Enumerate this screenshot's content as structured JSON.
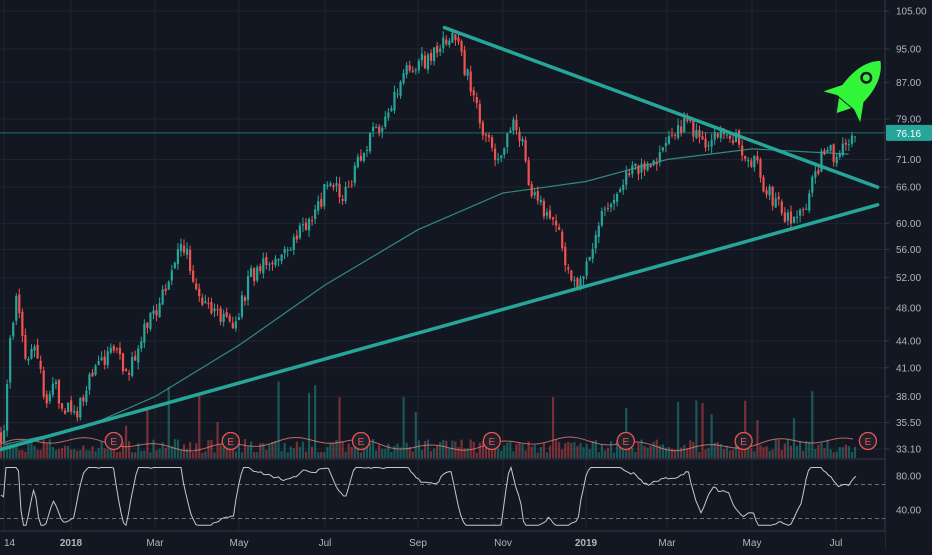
{
  "chart_data": {
    "type": "candlestick",
    "price_axis": {
      "scale": "log",
      "ticks": [
        "105.00",
        "95.00",
        "87.00",
        "79.00",
        "71.00",
        "66.00",
        "60.00",
        "56.00",
        "52.00",
        "48.00",
        "44.00",
        "41.00",
        "38.00",
        "35.50",
        "33.10"
      ]
    },
    "rsi_axis": {
      "ticks": [
        "80.00",
        "40.00"
      ]
    },
    "time_axis": {
      "ticks": [
        "14",
        "2018",
        "Mar",
        "May",
        "Jul",
        "Sep",
        "Nov",
        "2019",
        "Mar",
        "May",
        "Jul"
      ],
      "bold_ticks": [
        "2018",
        "2019"
      ]
    },
    "last_price": "76.16",
    "price_points": [
      [
        "2017-11-14",
        34.5
      ],
      [
        "2017-11-20",
        47
      ],
      [
        "2017-11-24",
        49.5
      ],
      [
        "2017-11-30",
        41
      ],
      [
        "2017-12-06",
        43.5
      ],
      [
        "2017-12-13",
        38
      ],
      [
        "2017-12-20",
        39
      ],
      [
        "2017-12-27",
        37
      ],
      [
        "2018-01-03",
        36
      ],
      [
        "2018-01-10",
        38.5
      ],
      [
        "2018-01-20",
        41
      ],
      [
        "2018-01-31",
        44
      ],
      [
        "2018-02-09",
        39.5
      ],
      [
        "2018-02-20",
        45
      ],
      [
        "2018-03-01",
        47.5
      ],
      [
        "2018-03-10",
        52
      ],
      [
        "2018-03-20",
        57
      ],
      [
        "2018-03-28",
        53
      ],
      [
        "2018-04-08",
        48
      ],
      [
        "2018-04-18",
        46.5
      ],
      [
        "2018-04-27",
        45
      ],
      [
        "2018-05-08",
        52
      ],
      [
        "2018-05-18",
        54
      ],
      [
        "2018-05-31",
        56
      ],
      [
        "2018-06-10",
        58
      ],
      [
        "2018-06-20",
        61
      ],
      [
        "2018-07-03",
        66
      ],
      [
        "2018-07-15",
        65
      ],
      [
        "2018-07-25",
        72
      ],
      [
        "2018-08-05",
        77
      ],
      [
        "2018-08-15",
        82
      ],
      [
        "2018-08-25",
        90
      ],
      [
        "2018-09-05",
        92
      ],
      [
        "2018-09-15",
        94
      ],
      [
        "2018-09-20",
        97
      ],
      [
        "2018-09-25",
        99
      ],
      [
        "2018-10-02",
        93
      ],
      [
        "2018-10-10",
        86
      ],
      [
        "2018-10-17",
        77
      ],
      [
        "2018-10-24",
        73
      ],
      [
        "2018-10-31",
        70
      ],
      [
        "2018-11-07",
        78
      ],
      [
        "2018-11-14",
        75
      ],
      [
        "2018-11-21",
        66
      ],
      [
        "2018-11-28",
        63
      ],
      [
        "2018-12-05",
        62
      ],
      [
        "2018-12-12",
        59
      ],
      [
        "2018-12-19",
        52
      ],
      [
        "2018-12-26",
        51
      ],
      [
        "2019-01-02",
        55
      ],
      [
        "2019-01-09",
        59
      ],
      [
        "2019-01-16",
        62
      ],
      [
        "2019-01-25",
        66
      ],
      [
        "2019-02-05",
        69
      ],
      [
        "2019-02-15",
        70
      ],
      [
        "2019-02-26",
        73
      ],
      [
        "2019-03-07",
        75
      ],
      [
        "2019-03-16",
        79
      ],
      [
        "2019-03-26",
        74
      ],
      [
        "2019-04-04",
        77
      ],
      [
        "2019-04-14",
        77
      ],
      [
        "2019-04-23",
        73
      ],
      [
        "2019-05-02",
        71
      ],
      [
        "2019-05-09",
        67
      ],
      [
        "2019-05-16",
        64
      ],
      [
        "2019-05-23",
        62
      ],
      [
        "2019-05-30",
        60
      ],
      [
        "2019-06-06",
        61
      ],
      [
        "2019-06-13",
        66
      ],
      [
        "2019-06-20",
        71
      ],
      [
        "2019-06-27",
        72
      ],
      [
        "2019-07-03",
        72
      ],
      [
        "2019-07-10",
        73
      ],
      [
        "2019-07-16",
        76.16
      ]
    ],
    "moving_average": [
      [
        "2017-11-14",
        33.5
      ],
      [
        "2018-01-10",
        35
      ],
      [
        "2018-03-01",
        38
      ],
      [
        "2018-05-01",
        43.5
      ],
      [
        "2018-07-01",
        51
      ],
      [
        "2018-09-01",
        59
      ],
      [
        "2018-11-01",
        65
      ],
      [
        "2019-01-01",
        67
      ],
      [
        "2019-03-01",
        71
      ],
      [
        "2019-05-01",
        73
      ],
      [
        "2019-07-10",
        72
      ]
    ],
    "trendlines": [
      {
        "from": [
          "2017-11-10",
          33.0
        ],
        "to": [
          "2019-07-31",
          63.0
        ],
        "color": "#26a69a"
      },
      {
        "from": [
          "2018-09-20",
          100.5
        ],
        "to": [
          "2019-07-31",
          66.0
        ],
        "color": "#26a69a"
      }
    ],
    "horizontal_line": 76.16,
    "earnings_markers": [
      "2018-01-31",
      "2018-04-25",
      "2018-07-25",
      "2018-10-24",
      "2019-01-30",
      "2019-04-25",
      "2019-07-24"
    ],
    "earnings_label": "E",
    "rsi_bands": [
      70,
      30
    ],
    "colors": {
      "background": "#131722",
      "grid": "#1f2430",
      "up": "#26a69a",
      "down": "#ef5350",
      "trendline": "#26a69a",
      "ma": "#2e8b80",
      "rsi": "#c8c8c8",
      "axis_text": "#b2b5be",
      "rocket": "#33f53a",
      "earnings": "#ef5350"
    },
    "icons": [
      "rocket-icon"
    ]
  }
}
